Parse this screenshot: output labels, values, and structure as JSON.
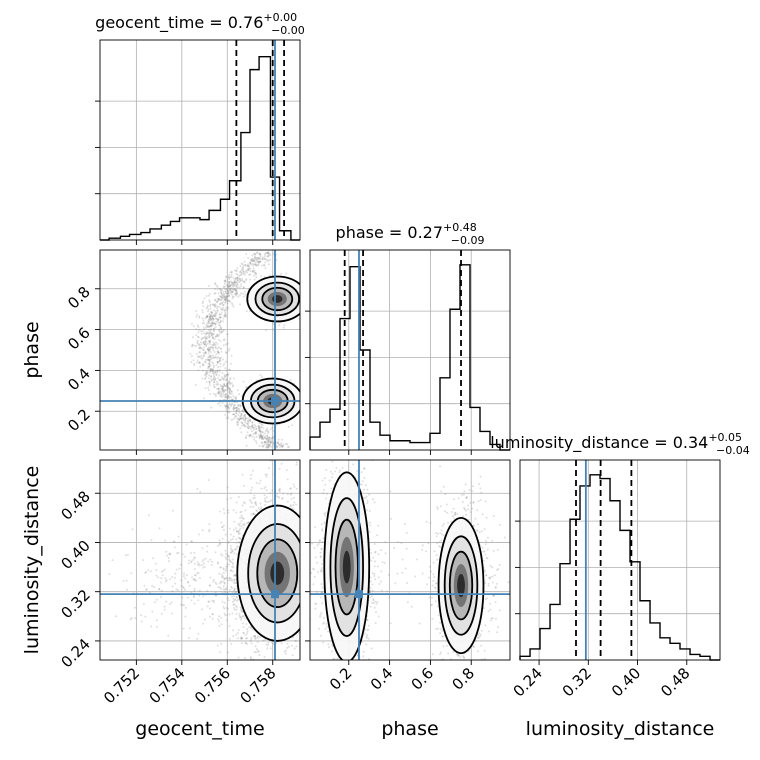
{
  "chart_data": {
    "type": "corner",
    "parameters": [
      "geocent_time",
      "phase",
      "luminosity_distance"
    ],
    "colors": {
      "truth": "#4682b4",
      "contour": "#000000",
      "samples": "#808080",
      "grid": "#b0b0b0"
    },
    "grid": true,
    "ranges": {
      "geocent_time": [
        0.7504,
        0.7592
      ],
      "phase": [
        0.01,
        0.99
      ],
      "luminosity_distance": [
        0.209,
        0.534
      ]
    },
    "ticks": {
      "geocent_time": [
        "0.752",
        "0.754",
        "0.756",
        "0.758"
      ],
      "phase": [
        "0.2",
        "0.4",
        "0.6",
        "0.8"
      ],
      "luminosity_distance": [
        "0.24",
        "0.32",
        "0.40",
        "0.48"
      ]
    },
    "tick_values": {
      "geocent_time": [
        0.752,
        0.754,
        0.756,
        0.758
      ],
      "phase": [
        0.2,
        0.4,
        0.6,
        0.8
      ],
      "luminosity_distance": [
        0.24,
        0.32,
        0.4,
        0.48
      ]
    },
    "truths": {
      "geocent_time": 0.7581,
      "phase": 0.25,
      "luminosity_distance": 0.316
    },
    "titles": {
      "geocent_time": {
        "name": "geocent_time",
        "median": "0.76",
        "plus": "+0.00",
        "minus": "−0.00"
      },
      "phase": {
        "name": "phase",
        "median": "0.27",
        "plus": "+0.48",
        "minus": "−0.09"
      },
      "luminosity_distance": {
        "name": "luminosity_distance",
        "median": "0.34",
        "plus": "+0.05",
        "minus": "−0.04"
      }
    },
    "quantiles": {
      "geocent_time": [
        0.7564,
        0.758,
        0.7585
      ],
      "phase": [
        0.18,
        0.27,
        0.75
      ],
      "luminosity_distance": [
        0.3,
        0.34,
        0.39
      ]
    },
    "histograms": {
      "geocent_time": {
        "edges": [
          0.7504,
          0.7508,
          0.7513,
          0.7517,
          0.7522,
          0.7526,
          0.7531,
          0.7535,
          0.7539,
          0.7544,
          0.7548,
          0.7552,
          0.7557,
          0.7561,
          0.7566,
          0.757,
          0.7574,
          0.7579,
          0.7583,
          0.7588,
          0.7592
        ],
        "counts": [
          0.0,
          0.01,
          0.02,
          0.03,
          0.04,
          0.06,
          0.08,
          0.1,
          0.12,
          0.12,
          0.11,
          0.16,
          0.22,
          0.32,
          0.58,
          0.92,
          0.99,
          0.34,
          0.05,
          0.0
        ]
      },
      "phase": {
        "edges": [
          0.01,
          0.059,
          0.108,
          0.157,
          0.206,
          0.255,
          0.304,
          0.353,
          0.402,
          0.451,
          0.5,
          0.549,
          0.598,
          0.647,
          0.696,
          0.745,
          0.794,
          0.843,
          0.892,
          0.941,
          0.99
        ],
        "counts": [
          0.07,
          0.15,
          0.22,
          0.71,
          0.99,
          0.54,
          0.15,
          0.08,
          0.05,
          0.05,
          0.04,
          0.04,
          0.09,
          0.39,
          0.76,
          1.0,
          0.23,
          0.1,
          0.03,
          0.0
        ]
      },
      "luminosity_distance": {
        "edges": [
          0.209,
          0.2253,
          0.2415,
          0.2578,
          0.274,
          0.2903,
          0.3065,
          0.3228,
          0.339,
          0.3553,
          0.3715,
          0.3878,
          0.404,
          0.4203,
          0.4365,
          0.4528,
          0.469,
          0.4853,
          0.5015,
          0.5178,
          0.534
        ],
        "counts": [
          0.02,
          0.06,
          0.17,
          0.3,
          0.52,
          0.76,
          0.94,
          1.0,
          0.98,
          0.86,
          0.7,
          0.53,
          0.32,
          0.2,
          0.12,
          0.09,
          0.06,
          0.03,
          0.02,
          0.0
        ]
      }
    },
    "joint_modes": {
      "geocent_time_vs_phase": [
        {
          "x": 0.758,
          "y": 0.25,
          "sx": 0.0006,
          "sy": 0.05
        },
        {
          "x": 0.7582,
          "y": 0.75,
          "sx": 0.0006,
          "sy": 0.05
        }
      ],
      "geocent_time_vs_luminosity_distance": [
        {
          "x": 0.7582,
          "y": 0.35,
          "sx": 0.0008,
          "sy": 0.05
        }
      ],
      "phase_vs_luminosity_distance": [
        {
          "x": 0.19,
          "y": 0.36,
          "sx": 0.05,
          "sy": 0.07
        },
        {
          "x": 0.75,
          "y": 0.33,
          "sx": 0.05,
          "sy": 0.05
        }
      ]
    },
    "contour_levels": [
      0.135,
      0.39,
      0.61,
      0.86
    ]
  }
}
